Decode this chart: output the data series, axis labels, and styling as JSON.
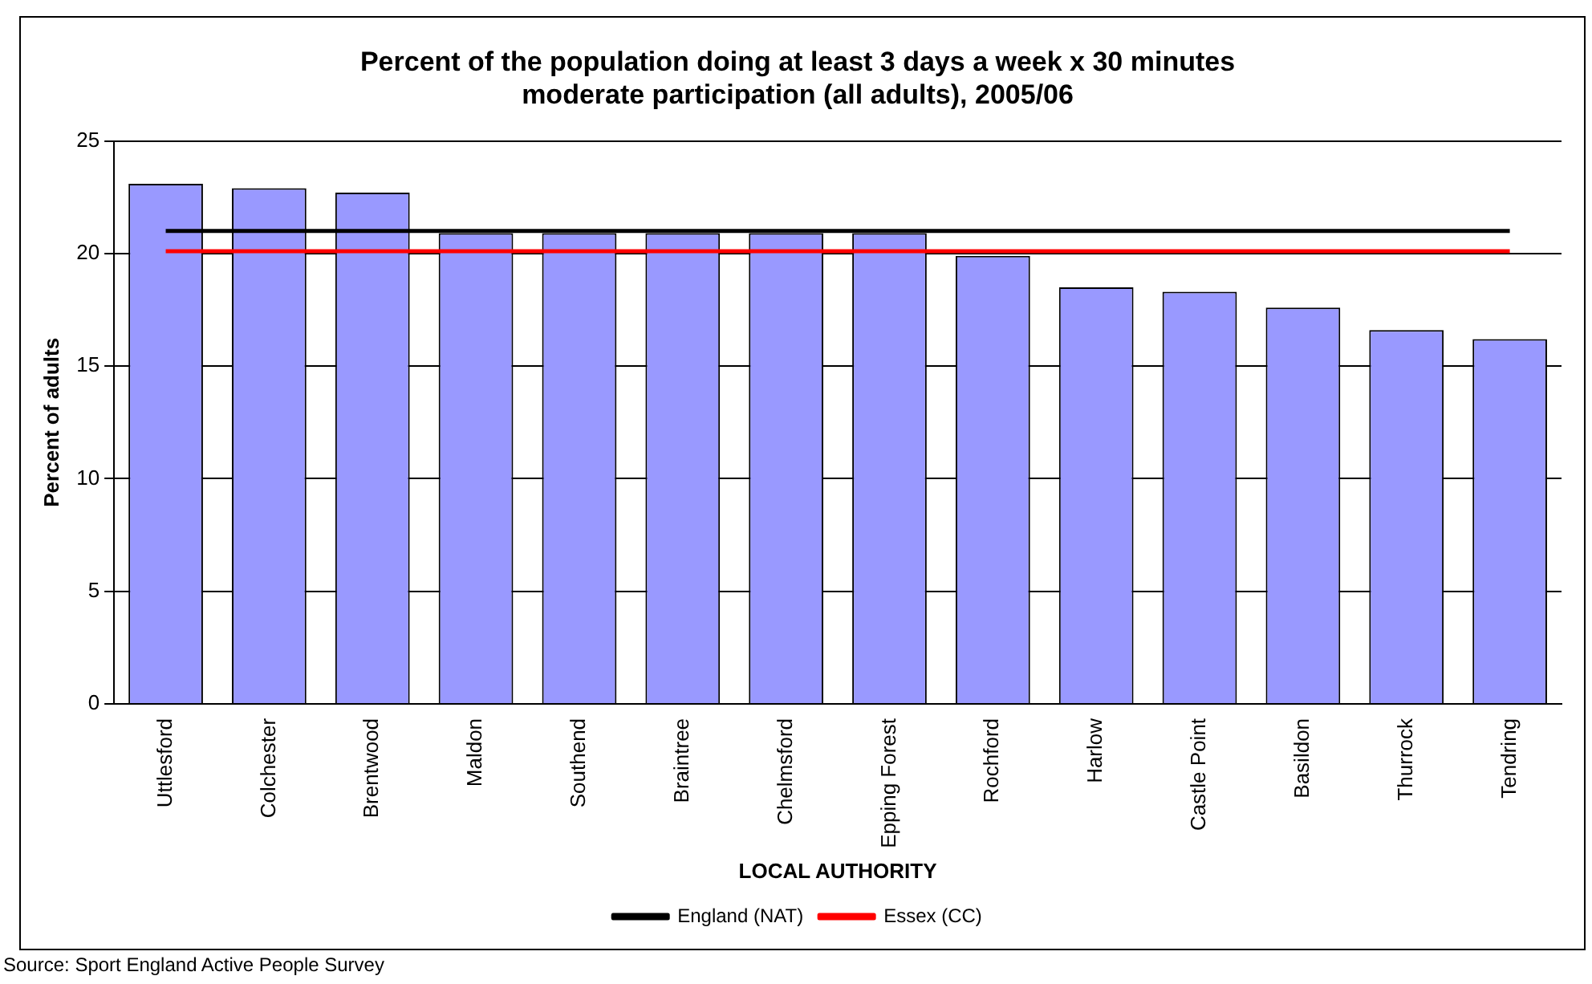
{
  "chart_data": {
    "type": "bar",
    "title": "Percent of the population doing at least 3 days a week x 30 minutes moderate participation (all adults), 2005/06",
    "xlabel": "LOCAL AUTHORITY",
    "ylabel": "Percent of adults",
    "categories": [
      "Uttlesford",
      "Colchester",
      "Brentwood",
      "Maldon",
      "Southend",
      "Braintree",
      "Chelmsford",
      "Epping Forest",
      "Rochford",
      "Harlow",
      "Castle Point",
      "Basildon",
      "Thurrock",
      "Tendring"
    ],
    "series": [
      {
        "color": "#9999ff",
        "values": [
          23.1,
          22.9,
          22.7,
          20.9,
          20.9,
          20.9,
          20.9,
          20.9,
          19.9,
          18.5,
          18.3,
          17.6,
          16.6,
          16.2
        ]
      },
      {
        "type": "line",
        "name": "England (NAT)",
        "color": "#000000",
        "values": [
          21,
          21,
          21,
          21,
          21,
          21,
          21,
          21,
          21,
          21,
          21,
          21,
          21,
          21
        ]
      },
      {
        "type": "line",
        "name": "Essex (CC)",
        "color": "#ff0000",
        "values": [
          20.1,
          20.1,
          20.1,
          20.1,
          20.1,
          20.1,
          20.1,
          20.1,
          20.1,
          20.1,
          20.1,
          20.1,
          20.1,
          20.1
        ]
      }
    ],
    "ylim": [
      0,
      25
    ],
    "yticks": [
      0,
      5,
      10,
      15,
      20,
      25
    ],
    "grid": "y",
    "legend": "bottom",
    "marker": "none",
    "annotations": [
      "Source: Sport England Active People Survey"
    ]
  }
}
